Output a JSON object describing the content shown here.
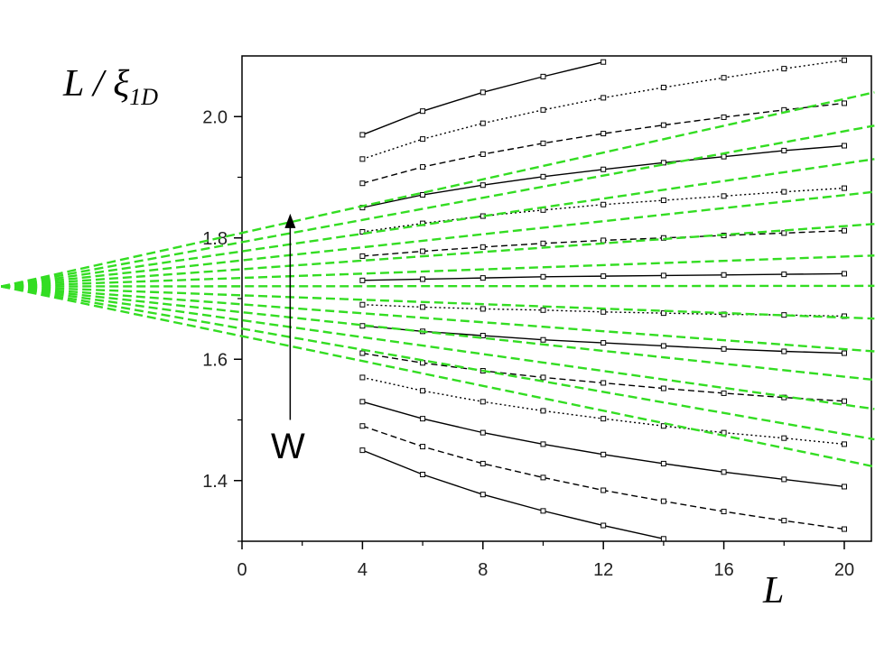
{
  "chart_data": {
    "type": "line",
    "ylabel": "L / ξ",
    "ylabel_sub": "1D",
    "xlabel": "L",
    "annotation": "W",
    "arrow": {
      "x": [
        1.6,
        1.6
      ],
      "values": [
        1.5,
        1.84
      ]
    },
    "xlim": [
      0,
      20.9
    ],
    "ylim": [
      1.3,
      2.1
    ],
    "xticks": [
      0,
      4,
      8,
      12,
      16,
      20
    ],
    "xticks_minor": [
      2,
      6,
      10,
      14,
      18
    ],
    "yticks": [
      1.4,
      1.6,
      1.8,
      {
        "value": 2,
        "label": "2.0"
      }
    ],
    "yticks_minor": [
      1.3,
      1.5,
      1.7,
      1.9
    ],
    "x": [
      4,
      6,
      8,
      10,
      12,
      14,
      16,
      18,
      20
    ],
    "series": [
      {
        "color": "#000000",
        "style": "solid",
        "values": [
          1.97,
          2.009,
          2.04,
          2.066,
          2.09,
          null,
          null,
          null,
          null
        ]
      },
      {
        "color": "#000000",
        "style": "dotted",
        "values": [
          1.93,
          1.963,
          1.989,
          2.011,
          2.031,
          2.048,
          2.064,
          2.079,
          2.093
        ]
      },
      {
        "color": "#000000",
        "style": "dashed",
        "values": [
          1.89,
          1.917,
          1.938,
          1.956,
          1.972,
          1.986,
          1.999,
          2.011,
          2.022
        ]
      },
      {
        "color": "#000000",
        "style": "solid",
        "values": [
          1.85,
          1.871,
          1.887,
          1.901,
          1.913,
          1.924,
          1.934,
          1.944,
          1.952
        ]
      },
      {
        "color": "#000000",
        "style": "dotted",
        "values": [
          1.81,
          1.824,
          1.836,
          1.846,
          1.855,
          1.862,
          1.869,
          1.876,
          1.882
        ]
      },
      {
        "color": "#000000",
        "style": "dashed",
        "values": [
          1.77,
          1.778,
          1.785,
          1.791,
          1.796,
          1.8,
          1.804,
          1.808,
          1.812
        ]
      },
      {
        "color": "#000000",
        "style": "solid",
        "values": [
          1.73,
          1.732,
          1.734,
          1.736,
          1.737,
          1.738,
          1.739,
          1.74,
          1.741
        ]
      },
      {
        "color": "#000000",
        "style": "dotted",
        "values": [
          1.69,
          1.686,
          1.683,
          1.681,
          1.678,
          1.676,
          1.674,
          1.673,
          1.671
        ]
      },
      {
        "color": "#000000",
        "style": "solid",
        "values": [
          1.655,
          1.646,
          1.639,
          1.632,
          1.627,
          1.622,
          1.617,
          1.613,
          1.61
        ]
      },
      {
        "color": "#000000",
        "style": "dashed",
        "values": [
          1.61,
          1.594,
          1.581,
          1.57,
          1.561,
          1.552,
          1.544,
          1.537,
          1.531
        ]
      },
      {
        "color": "#000000",
        "style": "dotted",
        "values": [
          1.57,
          1.548,
          1.53,
          1.515,
          1.502,
          1.49,
          1.479,
          1.47,
          1.46
        ]
      },
      {
        "color": "#000000",
        "style": "solid",
        "values": [
          1.53,
          1.502,
          1.479,
          1.46,
          1.443,
          1.428,
          1.414,
          1.402,
          1.39
        ]
      },
      {
        "color": "#000000",
        "style": "dashed",
        "values": [
          1.49,
          1.456,
          1.428,
          1.405,
          1.384,
          1.366,
          1.349,
          1.334,
          1.32
        ]
      },
      {
        "color": "#000000",
        "style": "solid",
        "values": [
          1.45,
          1.41,
          1.377,
          1.35,
          1.326,
          1.304,
          null,
          null,
          null
        ]
      }
    ],
    "fits": {
      "color": "#33dd22",
      "x": [
        -8,
        21
      ],
      "series": [
        {
          "values": [
            1.72,
            2.04
          ]
        },
        {
          "values": [
            1.72,
            1.985
          ]
        },
        {
          "values": [
            1.72,
            1.93
          ]
        },
        {
          "values": [
            1.72,
            1.876
          ]
        },
        {
          "values": [
            1.72,
            1.823
          ]
        },
        {
          "values": [
            1.72,
            1.771
          ]
        },
        {
          "values": [
            1.72,
            1.721
          ]
        },
        {
          "values": [
            1.72,
            1.667
          ]
        },
        {
          "values": [
            1.72,
            1.613
          ]
        },
        {
          "values": [
            1.72,
            1.566
          ]
        },
        {
          "values": [
            1.72,
            1.518
          ]
        },
        {
          "values": [
            1.72,
            1.468
          ]
        },
        {
          "values": [
            1.72,
            1.423
          ]
        }
      ]
    }
  }
}
